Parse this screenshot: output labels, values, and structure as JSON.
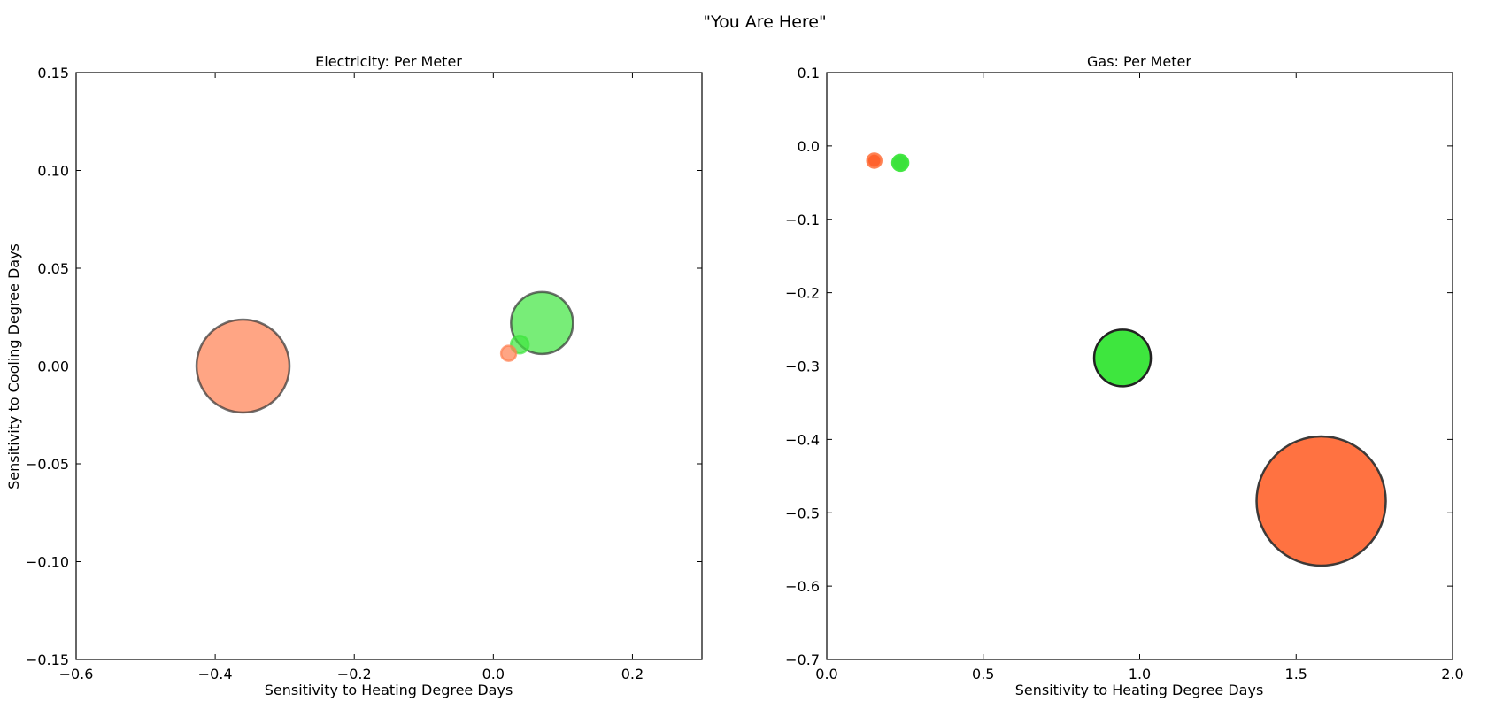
{
  "figure": {
    "title": "\"You Are Here\""
  },
  "chart_data": [
    {
      "type": "scatter",
      "title": "Electricity: Per Meter",
      "xlabel": "Sensitivity to Heating Degree Days",
      "ylabel": "Sensitivity to Cooling Degree Days",
      "xlim": [
        -0.6,
        0.3
      ],
      "ylim": [
        -0.15,
        0.15
      ],
      "xticks": [
        -0.6,
        -0.4,
        -0.2,
        0.0,
        0.2
      ],
      "xtick_labels": [
        "−0.6",
        "−0.4",
        "−0.2",
        "0.0",
        "0.2"
      ],
      "yticks": [
        -0.15,
        -0.1,
        -0.05,
        0.0,
        0.05,
        0.1,
        0.15
      ],
      "ytick_labels": [
        "−0.15",
        "−0.10",
        "−0.05",
        "0.00",
        "0.05",
        "0.10",
        "0.15"
      ],
      "grid": false,
      "points": [
        {
          "x": -0.36,
          "y": 0.0,
          "size": 105,
          "color": "#ff7f50",
          "alpha": 0.7,
          "edge": "#333333"
        },
        {
          "x": 0.07,
          "y": 0.022,
          "size": 70,
          "color": "#3ee63e",
          "alpha": 0.7,
          "edge": "#333333"
        },
        {
          "x": 0.038,
          "y": 0.011,
          "size": 20,
          "color": "#3ee63e",
          "alpha": 0.7,
          "edge": "#3ee63e"
        },
        {
          "x": 0.022,
          "y": 0.0065,
          "size": 17,
          "color": "#ff7f50",
          "alpha": 0.7,
          "edge": "#ff7f50"
        }
      ]
    },
    {
      "type": "scatter",
      "title": "Gas: Per Meter",
      "xlabel": "Sensitivity to Heating Degree Days",
      "ylabel": "",
      "xlim": [
        0.0,
        2.0
      ],
      "ylim": [
        -0.7,
        0.1
      ],
      "xticks": [
        0.0,
        0.5,
        1.0,
        1.5,
        2.0
      ],
      "xtick_labels": [
        "0.0",
        "0.5",
        "1.0",
        "1.5",
        "2.0"
      ],
      "yticks": [
        -0.7,
        -0.6,
        -0.5,
        -0.4,
        -0.3,
        -0.2,
        -0.1,
        0.0,
        0.1
      ],
      "ytick_labels": [
        "−0.7",
        "−0.6",
        "−0.5",
        "−0.4",
        "−0.3",
        "−0.2",
        "−0.1",
        "0.0",
        "0.1"
      ],
      "grid": false,
      "points": [
        {
          "x": 1.58,
          "y": -0.484,
          "size": 146,
          "color": "#ff6a37",
          "alpha": 0.95,
          "edge": "#333333"
        },
        {
          "x": 0.945,
          "y": -0.289,
          "size": 64,
          "color": "#3ee63e",
          "alpha": 1.0,
          "edge": "#222222"
        },
        {
          "x": 0.152,
          "y": -0.02,
          "size": 16,
          "color": "#ff5a22",
          "alpha": 0.95,
          "edge": "#ff7f50"
        },
        {
          "x": 0.235,
          "y": -0.023,
          "size": 18,
          "color": "#30e030",
          "alpha": 0.95,
          "edge": "#3ee63e"
        }
      ]
    }
  ]
}
